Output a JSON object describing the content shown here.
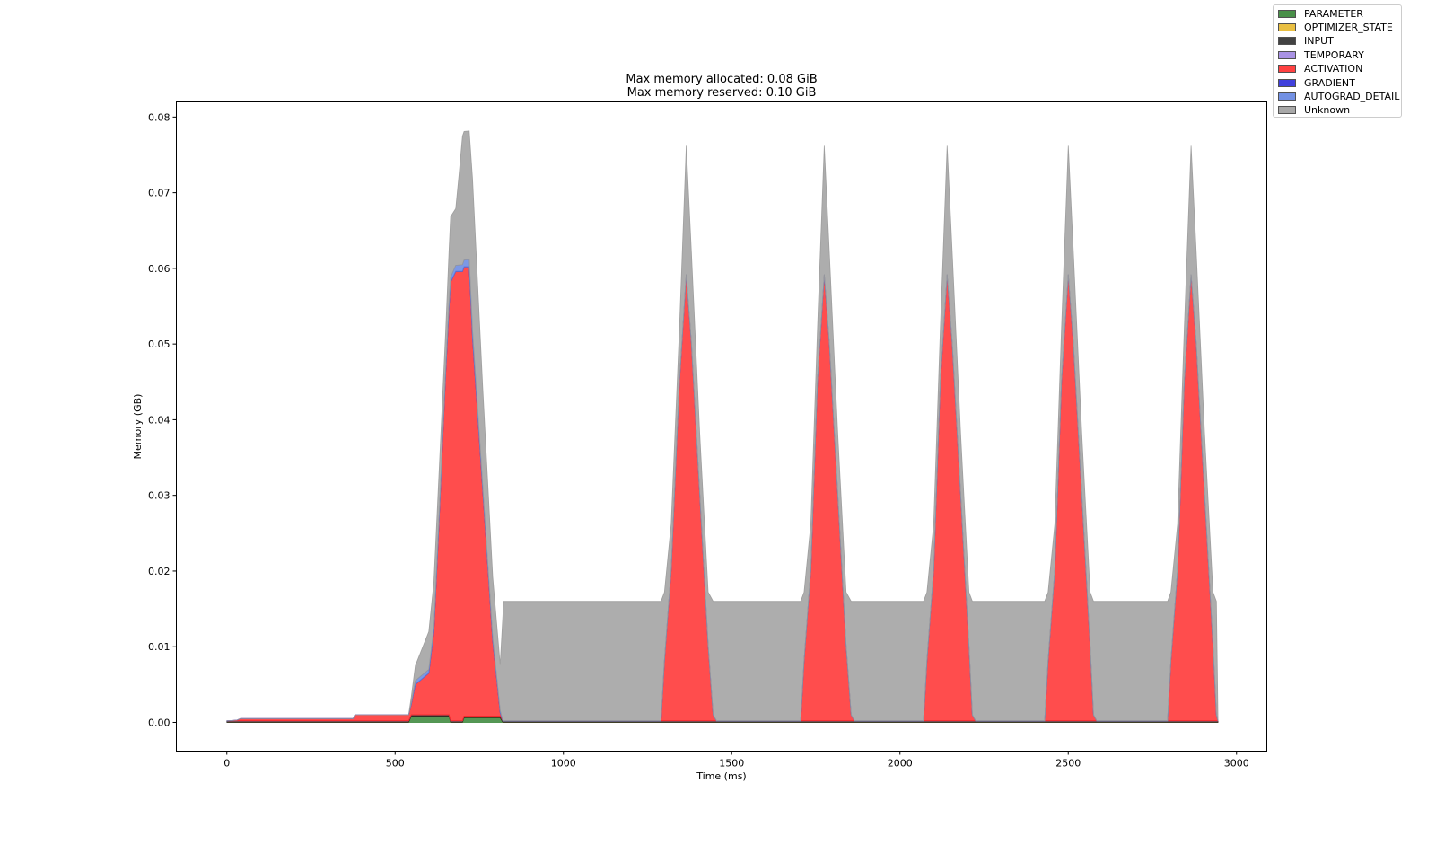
{
  "chart_data": {
    "type": "area",
    "title_lines": [
      "Max memory allocated: 0.08 GiB",
      "Max memory reserved: 0.10 GiB"
    ],
    "xlabel": "Time (ms)",
    "ylabel": "Memory (GB)",
    "xlim": [
      -150,
      3090
    ],
    "ylim": [
      -0.0038,
      0.082
    ],
    "xticks": [
      0,
      500,
      1000,
      1500,
      2000,
      2500,
      3000
    ],
    "yticks": [
      0.0,
      0.01,
      0.02,
      0.03,
      0.04,
      0.05,
      0.06,
      0.07,
      0.08
    ],
    "ytick_labels": [
      "0.00",
      "0.01",
      "0.02",
      "0.03",
      "0.04",
      "0.05",
      "0.06",
      "0.07",
      "0.08"
    ],
    "legend_position": "upper right, outside plot",
    "stacked": true,
    "series": [
      {
        "name": "PARAMETER",
        "color": "#2a7d2a",
        "points": [
          [
            0,
            0.0
          ],
          [
            540,
            0.0
          ],
          [
            548,
            0.0008
          ],
          [
            660,
            0.0008
          ],
          [
            665,
            0.0
          ],
          [
            700,
            0.0
          ],
          [
            705,
            0.0006
          ],
          [
            812,
            0.0006
          ],
          [
            820,
            0.0
          ],
          [
            2945,
            0.0
          ]
        ]
      },
      {
        "name": "OPTIMIZER_STATE",
        "color": "#e6b422",
        "points": [
          [
            0,
            0.0
          ],
          [
            2945,
            0.0
          ]
        ]
      },
      {
        "name": "INPUT",
        "color": "#222222",
        "points": [
          [
            0,
            0.0002
          ],
          [
            2945,
            0.0002
          ]
        ]
      },
      {
        "name": "TEMPORARY",
        "color": "#9b7fe0",
        "points": [
          [
            0,
            0.0
          ],
          [
            2945,
            0.0
          ]
        ]
      },
      {
        "name": "ACTIVATION",
        "color": "#ff2020",
        "points": [
          [
            0,
            0.0
          ],
          [
            30,
            0.0001
          ],
          [
            40,
            0.0003
          ],
          [
            375,
            0.0003
          ],
          [
            380,
            0.0008
          ],
          [
            540,
            0.0008
          ],
          [
            548,
            0.0014
          ],
          [
            560,
            0.004
          ],
          [
            600,
            0.0055
          ],
          [
            615,
            0.011
          ],
          [
            630,
            0.025
          ],
          [
            650,
            0.045
          ],
          [
            665,
            0.058
          ],
          [
            680,
            0.0594
          ],
          [
            720,
            0.0594
          ],
          [
            730,
            0.05
          ],
          [
            760,
            0.03
          ],
          [
            790,
            0.01
          ],
          [
            812,
            0.0005
          ],
          [
            820,
            0.0
          ],
          [
            1290,
            0.0
          ],
          [
            1300,
            0.008
          ],
          [
            1320,
            0.02
          ],
          [
            1345,
            0.045
          ],
          [
            1365,
            0.059
          ],
          [
            1380,
            0.05
          ],
          [
            1405,
            0.03
          ],
          [
            1430,
            0.01
          ],
          [
            1445,
            0.0008
          ],
          [
            1455,
            0.0
          ],
          [
            1705,
            0.0
          ],
          [
            1715,
            0.008
          ],
          [
            1735,
            0.02
          ],
          [
            1755,
            0.045
          ],
          [
            1775,
            0.059
          ],
          [
            1790,
            0.05
          ],
          [
            1815,
            0.03
          ],
          [
            1840,
            0.01
          ],
          [
            1855,
            0.0008
          ],
          [
            1865,
            0.0
          ],
          [
            2070,
            0.0
          ],
          [
            2080,
            0.008
          ],
          [
            2100,
            0.02
          ],
          [
            2120,
            0.045
          ],
          [
            2140,
            0.059
          ],
          [
            2155,
            0.05
          ],
          [
            2180,
            0.03
          ],
          [
            2205,
            0.01
          ],
          [
            2215,
            0.0008
          ],
          [
            2225,
            0.0
          ],
          [
            2430,
            0.0
          ],
          [
            2440,
            0.008
          ],
          [
            2460,
            0.02
          ],
          [
            2480,
            0.045
          ],
          [
            2500,
            0.059
          ],
          [
            2515,
            0.05
          ],
          [
            2540,
            0.03
          ],
          [
            2565,
            0.01
          ],
          [
            2575,
            0.0008
          ],
          [
            2585,
            0.0
          ],
          [
            2795,
            0.0
          ],
          [
            2805,
            0.008
          ],
          [
            2825,
            0.02
          ],
          [
            2845,
            0.045
          ],
          [
            2865,
            0.059
          ],
          [
            2880,
            0.05
          ],
          [
            2905,
            0.03
          ],
          [
            2930,
            0.01
          ],
          [
            2940,
            0.0008
          ],
          [
            2945,
            0.0
          ]
        ]
      },
      {
        "name": "GRADIENT",
        "color": "#1f1fd6",
        "points": [
          [
            0,
            0.0
          ],
          [
            2945,
            0.0
          ]
        ]
      },
      {
        "name": "AUTOGRAD_DETAIL",
        "color": "#5b7ee0",
        "points": [
          [
            0,
            0.0
          ],
          [
            540,
            0.0
          ],
          [
            560,
            0.0005
          ],
          [
            650,
            0.0005
          ],
          [
            680,
            0.0008
          ],
          [
            730,
            0.001
          ],
          [
            760,
            0.0005
          ],
          [
            812,
            0.0003
          ],
          [
            820,
            0.0
          ],
          [
            2945,
            0.0
          ]
        ]
      },
      {
        "name": "Unknown",
        "color": "#999999",
        "points": [
          [
            0,
            0.0
          ],
          [
            540,
            0.0
          ],
          [
            560,
            0.002
          ],
          [
            600,
            0.005
          ],
          [
            615,
            0.006
          ],
          [
            630,
            0.006
          ],
          [
            650,
            0.005
          ],
          [
            665,
            0.008
          ],
          [
            680,
            0.0075
          ],
          [
            690,
            0.012
          ],
          [
            700,
            0.017
          ],
          [
            720,
            0.017
          ],
          [
            730,
            0.02
          ],
          [
            760,
            0.013
          ],
          [
            790,
            0.008
          ],
          [
            812,
            0.006
          ],
          [
            822,
            0.0158
          ],
          [
            1290,
            0.0158
          ],
          [
            1300,
            0.009
          ],
          [
            1320,
            0.006
          ],
          [
            1345,
            0.007
          ],
          [
            1365,
            0.017
          ],
          [
            1380,
            0.012
          ],
          [
            1405,
            0.008
          ],
          [
            1430,
            0.007
          ],
          [
            1445,
            0.015
          ],
          [
            1455,
            0.0158
          ],
          [
            1705,
            0.0158
          ],
          [
            1715,
            0.009
          ],
          [
            1735,
            0.006
          ],
          [
            1755,
            0.007
          ],
          [
            1775,
            0.017
          ],
          [
            1790,
            0.012
          ],
          [
            1815,
            0.008
          ],
          [
            1840,
            0.007
          ],
          [
            1855,
            0.015
          ],
          [
            1865,
            0.0158
          ],
          [
            2070,
            0.0158
          ],
          [
            2080,
            0.009
          ],
          [
            2100,
            0.006
          ],
          [
            2120,
            0.007
          ],
          [
            2140,
            0.017
          ],
          [
            2155,
            0.012
          ],
          [
            2180,
            0.008
          ],
          [
            2205,
            0.007
          ],
          [
            2215,
            0.015
          ],
          [
            2225,
            0.0158
          ],
          [
            2430,
            0.0158
          ],
          [
            2440,
            0.009
          ],
          [
            2460,
            0.006
          ],
          [
            2480,
            0.007
          ],
          [
            2500,
            0.017
          ],
          [
            2515,
            0.012
          ],
          [
            2540,
            0.008
          ],
          [
            2565,
            0.007
          ],
          [
            2575,
            0.015
          ],
          [
            2585,
            0.0158
          ],
          [
            2795,
            0.0158
          ],
          [
            2805,
            0.009
          ],
          [
            2825,
            0.006
          ],
          [
            2845,
            0.007
          ],
          [
            2865,
            0.017
          ],
          [
            2880,
            0.012
          ],
          [
            2905,
            0.008
          ],
          [
            2930,
            0.007
          ],
          [
            2940,
            0.015
          ],
          [
            2945,
            0.0
          ]
        ]
      }
    ]
  }
}
